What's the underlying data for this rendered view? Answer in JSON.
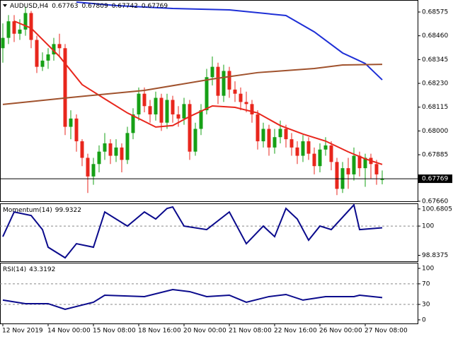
{
  "chart_data": [
    {
      "type": "candlestick",
      "title": "AUDUSD,H4",
      "categories": [
        "12 Nov 2019",
        null,
        null,
        null,
        null,
        null,
        null,
        null,
        "14 Nov 00:00",
        null,
        null,
        null,
        null,
        null,
        null,
        null,
        "15 Nov 08:00",
        null,
        null,
        null,
        null,
        null,
        null,
        null,
        "18 Nov 16:00",
        null,
        null,
        null,
        null,
        null,
        null,
        null,
        "20 Nov 00:00",
        null,
        null,
        null,
        null,
        null,
        null,
        null,
        "21 Nov 08:00",
        null,
        null,
        null,
        null,
        null,
        null,
        null,
        "22 Nov 16:00",
        null,
        null,
        null,
        null,
        null,
        null,
        null,
        "26 Nov 00:00",
        null,
        null,
        null,
        null,
        null,
        null,
        null,
        "27 Nov 08:00",
        null,
        null,
        null
      ],
      "open": [
        0.684,
        0.6845,
        0.6853,
        0.6847,
        0.6849,
        0.6857,
        0.6844,
        0.6831,
        0.6834,
        0.6837,
        0.6842,
        0.684,
        0.6802,
        0.6806,
        0.6795,
        0.6787,
        0.6778,
        0.6784,
        0.679,
        0.6794,
        0.6788,
        0.6792,
        0.6786,
        0.6799,
        0.6808,
        0.6818,
        0.6812,
        0.6808,
        0.6816,
        0.6804,
        0.6815,
        0.6808,
        0.6806,
        0.6813,
        0.679,
        0.6801,
        0.681,
        0.6826,
        0.6831,
        0.6817,
        0.6829,
        0.682,
        0.6818,
        0.6814,
        0.6813,
        0.6808,
        0.6795,
        0.6801,
        0.6792,
        0.6797,
        0.6801,
        0.6796,
        0.6792,
        0.6788,
        0.6795,
        0.6789,
        0.6783,
        0.6791,
        0.6793,
        0.6785,
        0.6772,
        0.6782,
        0.6779,
        0.6788,
        0.6782,
        0.6787,
        0.6784,
        0.67763
      ],
      "high": [
        0.6852,
        0.6856,
        0.6856,
        0.6854,
        0.686,
        0.6858,
        0.6846,
        0.6838,
        0.684,
        0.6845,
        0.6847,
        0.6842,
        0.681,
        0.6808,
        0.6796,
        0.6789,
        0.6787,
        0.6793,
        0.6799,
        0.6796,
        0.6796,
        0.6794,
        0.6802,
        0.6811,
        0.6821,
        0.6821,
        0.6815,
        0.6819,
        0.6818,
        0.6818,
        0.6817,
        0.6812,
        0.6816,
        0.6815,
        0.6804,
        0.6813,
        0.683,
        0.6836,
        0.6833,
        0.6832,
        0.6831,
        0.6824,
        0.6821,
        0.6819,
        0.6815,
        0.681,
        0.6804,
        0.6803,
        0.6801,
        0.6805,
        0.6803,
        0.6799,
        0.6795,
        0.6798,
        0.6797,
        0.6792,
        0.6794,
        0.6797,
        0.6795,
        0.6787,
        0.6785,
        0.6787,
        0.6792,
        0.679,
        0.6789,
        0.6789,
        0.6786,
        0.67809
      ],
      "low": [
        0.6833,
        0.6842,
        0.6843,
        0.6844,
        0.6846,
        0.684,
        0.6828,
        0.6829,
        0.683,
        0.6834,
        0.6836,
        0.6798,
        0.6796,
        0.679,
        0.6783,
        0.677,
        0.6774,
        0.678,
        0.6786,
        0.6784,
        0.6785,
        0.678,
        0.6784,
        0.6796,
        0.6805,
        0.6809,
        0.6804,
        0.6805,
        0.68,
        0.6801,
        0.6804,
        0.6802,
        0.6803,
        0.6786,
        0.6788,
        0.6798,
        0.6808,
        0.6822,
        0.6813,
        0.6814,
        0.6816,
        0.6814,
        0.681,
        0.6809,
        0.6804,
        0.6791,
        0.6792,
        0.6788,
        0.6789,
        0.6794,
        0.6792,
        0.6788,
        0.6784,
        0.6785,
        0.6786,
        0.6779,
        0.678,
        0.6788,
        0.6781,
        0.6769,
        0.677,
        0.6772,
        0.6776,
        0.6778,
        0.6773,
        0.6777,
        0.6774,
        0.67742
      ],
      "close": [
        0.6845,
        0.6853,
        0.6847,
        0.6849,
        0.6857,
        0.6844,
        0.6831,
        0.6834,
        0.6837,
        0.6842,
        0.684,
        0.6802,
        0.6806,
        0.6795,
        0.6787,
        0.6778,
        0.6784,
        0.679,
        0.6794,
        0.6788,
        0.6792,
        0.6786,
        0.6799,
        0.6808,
        0.6818,
        0.6812,
        0.6808,
        0.6816,
        0.6804,
        0.6815,
        0.6808,
        0.6806,
        0.6813,
        0.679,
        0.6801,
        0.681,
        0.6826,
        0.6831,
        0.6817,
        0.6829,
        0.682,
        0.6818,
        0.6814,
        0.6813,
        0.6808,
        0.6795,
        0.6801,
        0.6792,
        0.6797,
        0.6801,
        0.6796,
        0.6792,
        0.6788,
        0.6795,
        0.6789,
        0.6783,
        0.6791,
        0.6793,
        0.6785,
        0.6772,
        0.6782,
        0.6779,
        0.6788,
        0.6782,
        0.6787,
        0.6784,
        0.6779,
        0.67769
      ],
      "up_color": "#16a016",
      "down_color": "#e8261c",
      "series": [
        {
          "color": "#e8261c",
          "x": [
            2,
            5,
            10,
            14,
            18,
            22,
            27,
            30,
            33,
            37,
            41,
            45,
            49,
            53,
            57,
            61,
            64,
            67
          ],
          "values": [
            0.68531,
            0.68497,
            0.6836,
            0.68224,
            0.68155,
            0.68087,
            0.68019,
            0.68026,
            0.6807,
            0.68121,
            0.68114,
            0.68087,
            0.68026,
            0.67985,
            0.67951,
            0.67899,
            0.67865,
            0.67838
          ]
        },
        {
          "color": "#1e2fd6",
          "x": [
            13,
            20,
            30,
            40,
            50,
            55,
            60,
            64,
            67
          ],
          "values": [
            0.68623,
            0.68606,
            0.68592,
            0.68585,
            0.68558,
            0.68479,
            0.68377,
            0.68326,
            0.68247
          ]
        },
        {
          "color": "#a0522d",
          "x": [
            0,
            12,
            25,
            37,
            45,
            55,
            60,
            67
          ],
          "values": [
            0.68128,
            0.68162,
            0.68196,
            0.68251,
            0.68282,
            0.68302,
            0.68319,
            0.68322
          ]
        }
      ],
      "ylim": [
        0.6766,
        0.68633
      ],
      "yticks": [
        0.68575,
        {
          "value": 0.6846,
          "label": "0.68460"
        },
        0.68345,
        {
          "value": 0.6823,
          "label": "0.68230"
        },
        0.68115,
        {
          "value": 0.68,
          "label": "0.68000"
        },
        0.67885,
        {
          "value": 0.6766,
          "label": "0.67660"
        }
      ]
    },
    {
      "type": "line",
      "title": "Momentum(14)",
      "color": "#0a0a8c",
      "x": [
        0,
        2,
        5,
        7,
        8,
        11,
        13,
        16,
        18,
        22,
        25,
        27,
        29,
        30,
        32,
        36,
        40,
        43,
        46,
        48,
        50,
        52,
        54,
        56,
        58,
        62,
        63,
        67
      ],
      "values": [
        99.58,
        100.56,
        100.42,
        99.86,
        99.16,
        98.74,
        99.3,
        99.16,
        100.56,
        100,
        100.56,
        100.28,
        100.7,
        100.76,
        100,
        99.86,
        100.56,
        99.3,
        100,
        99.58,
        100.7,
        100.28,
        99.44,
        100,
        99.86,
        100.84,
        99.86,
        99.9322
      ],
      "ylim": [
        98.6,
        100.9
      ],
      "yticks": [
        100.6805,
        100,
        98.8375
      ],
      "dashed_levels": [
        100
      ]
    },
    {
      "type": "line",
      "title": "RSI(14)",
      "color": "#0a0a8c",
      "x": [
        0,
        4,
        8,
        11,
        14,
        16,
        18,
        25,
        30,
        33,
        36,
        40,
        43,
        47,
        50,
        53,
        57,
        62,
        63,
        67
      ],
      "values": [
        38.4,
        31.5,
        31.5,
        20.5,
        28.8,
        34.2,
        47.9,
        45.2,
        58.9,
        54.8,
        45.2,
        47.9,
        34.2,
        45.2,
        49.3,
        38.4,
        45.2,
        45.2,
        47.9,
        43.3192
      ],
      "ylim": [
        -7,
        111
      ],
      "yticks": [
        100,
        70,
        30,
        0
      ],
      "dashed_levels": [
        70,
        30
      ]
    }
  ]
}
